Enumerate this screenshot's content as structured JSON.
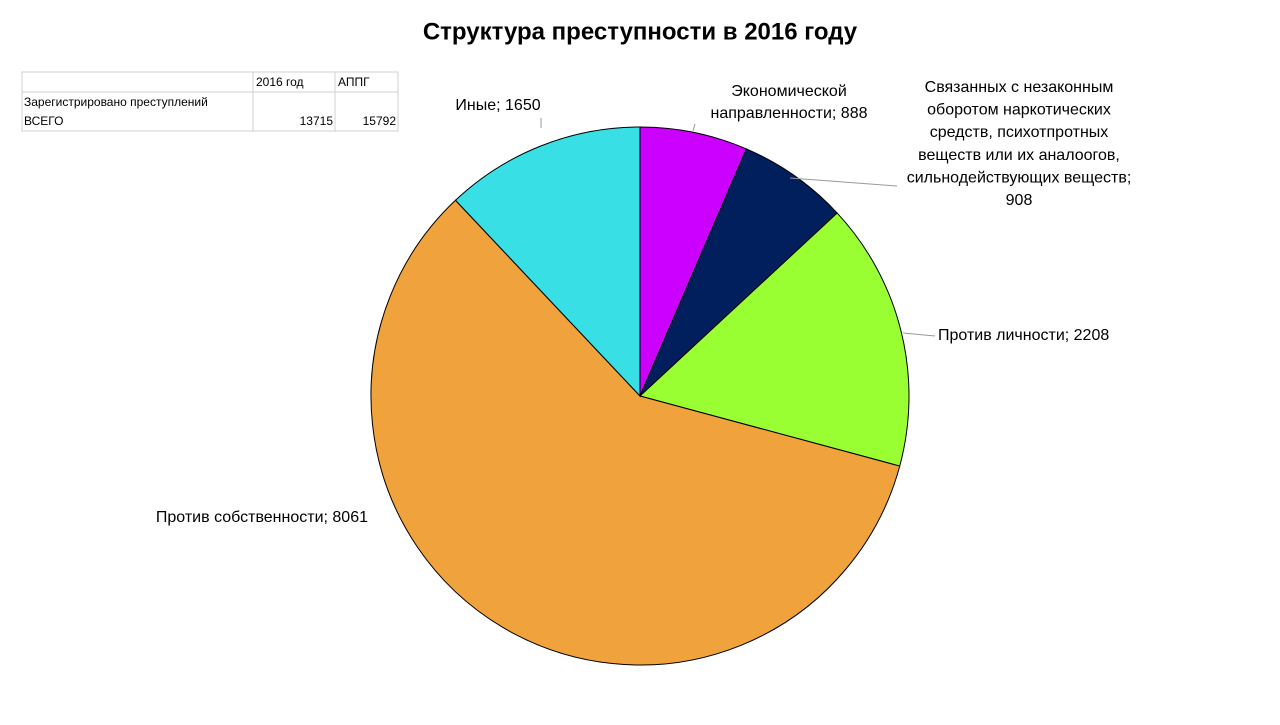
{
  "chart_data": {
    "type": "pie",
    "title": "Структура преступности в 2016 году",
    "values": [
      888,
      908,
      2208,
      8061,
      1650
    ],
    "value_labels": [
      "Экономической\nнаправленности; 888",
      "Связанных с незаконным\nоборотом наркотических\nсредств, психотпротных\nвеществ или их аналоогов,\nсильнодействующих веществ;\n908",
      "Против личности; 2208",
      "Против собственности; 8061",
      "Иные; 1650"
    ],
    "colors": [
      "#cc00ff",
      "#001f5c",
      "#99ff33",
      "#f0a23c",
      "#38e0e6"
    ]
  },
  "table": {
    "columns": [
      "2016 год",
      "АППГ"
    ],
    "row_label": "Зарегистрировано  преступлений ВСЕГО",
    "values": [
      13715,
      15792
    ]
  }
}
